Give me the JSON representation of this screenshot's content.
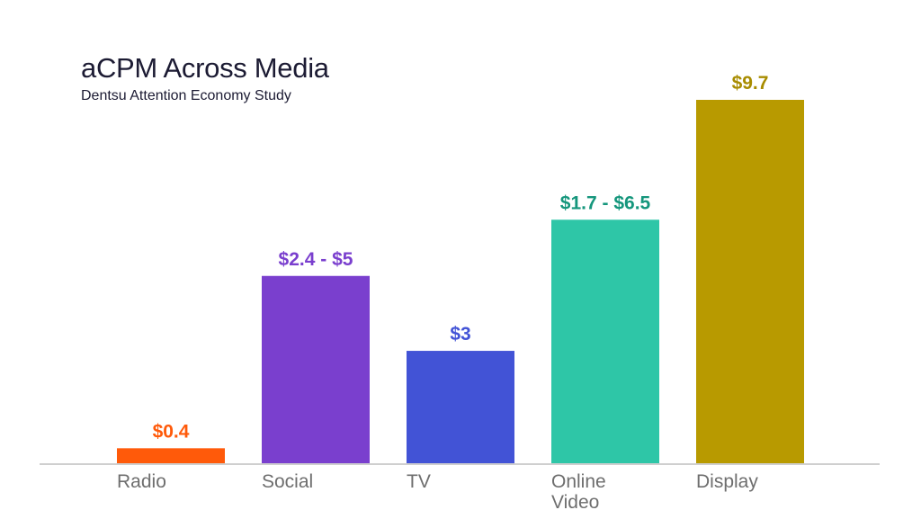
{
  "chart_data": {
    "type": "bar",
    "title": "aCPM Across Media",
    "subtitle": "Dentsu Attention Economy Study",
    "xlabel": "",
    "ylabel": "",
    "ylim": [
      0,
      10
    ],
    "grid": false,
    "categories": [
      "Radio",
      "Social",
      "TV",
      "Online Video",
      "Display"
    ],
    "category_lines": [
      [
        "Radio"
      ],
      [
        "Social"
      ],
      [
        "TV"
      ],
      [
        "Online",
        "Video"
      ],
      [
        "Display"
      ]
    ],
    "values": [
      0.4,
      5,
      3,
      6.5,
      9.7
    ],
    "data_labels": [
      "$0.4",
      "$2.4 - $5",
      "$3",
      "$1.7 - $6.5",
      "$9.7"
    ],
    "bar_colors": [
      "#ff5a0a",
      "#7a3fce",
      "#4253d6",
      "#2ec6a7",
      "#b89a00"
    ],
    "label_colors": [
      "#ff5a0a",
      "#7a3fce",
      "#4253d6",
      "#15967c",
      "#a88c00"
    ],
    "axis_color": "#cfcfcf",
    "tick_label_color": "#6e6e6e"
  }
}
